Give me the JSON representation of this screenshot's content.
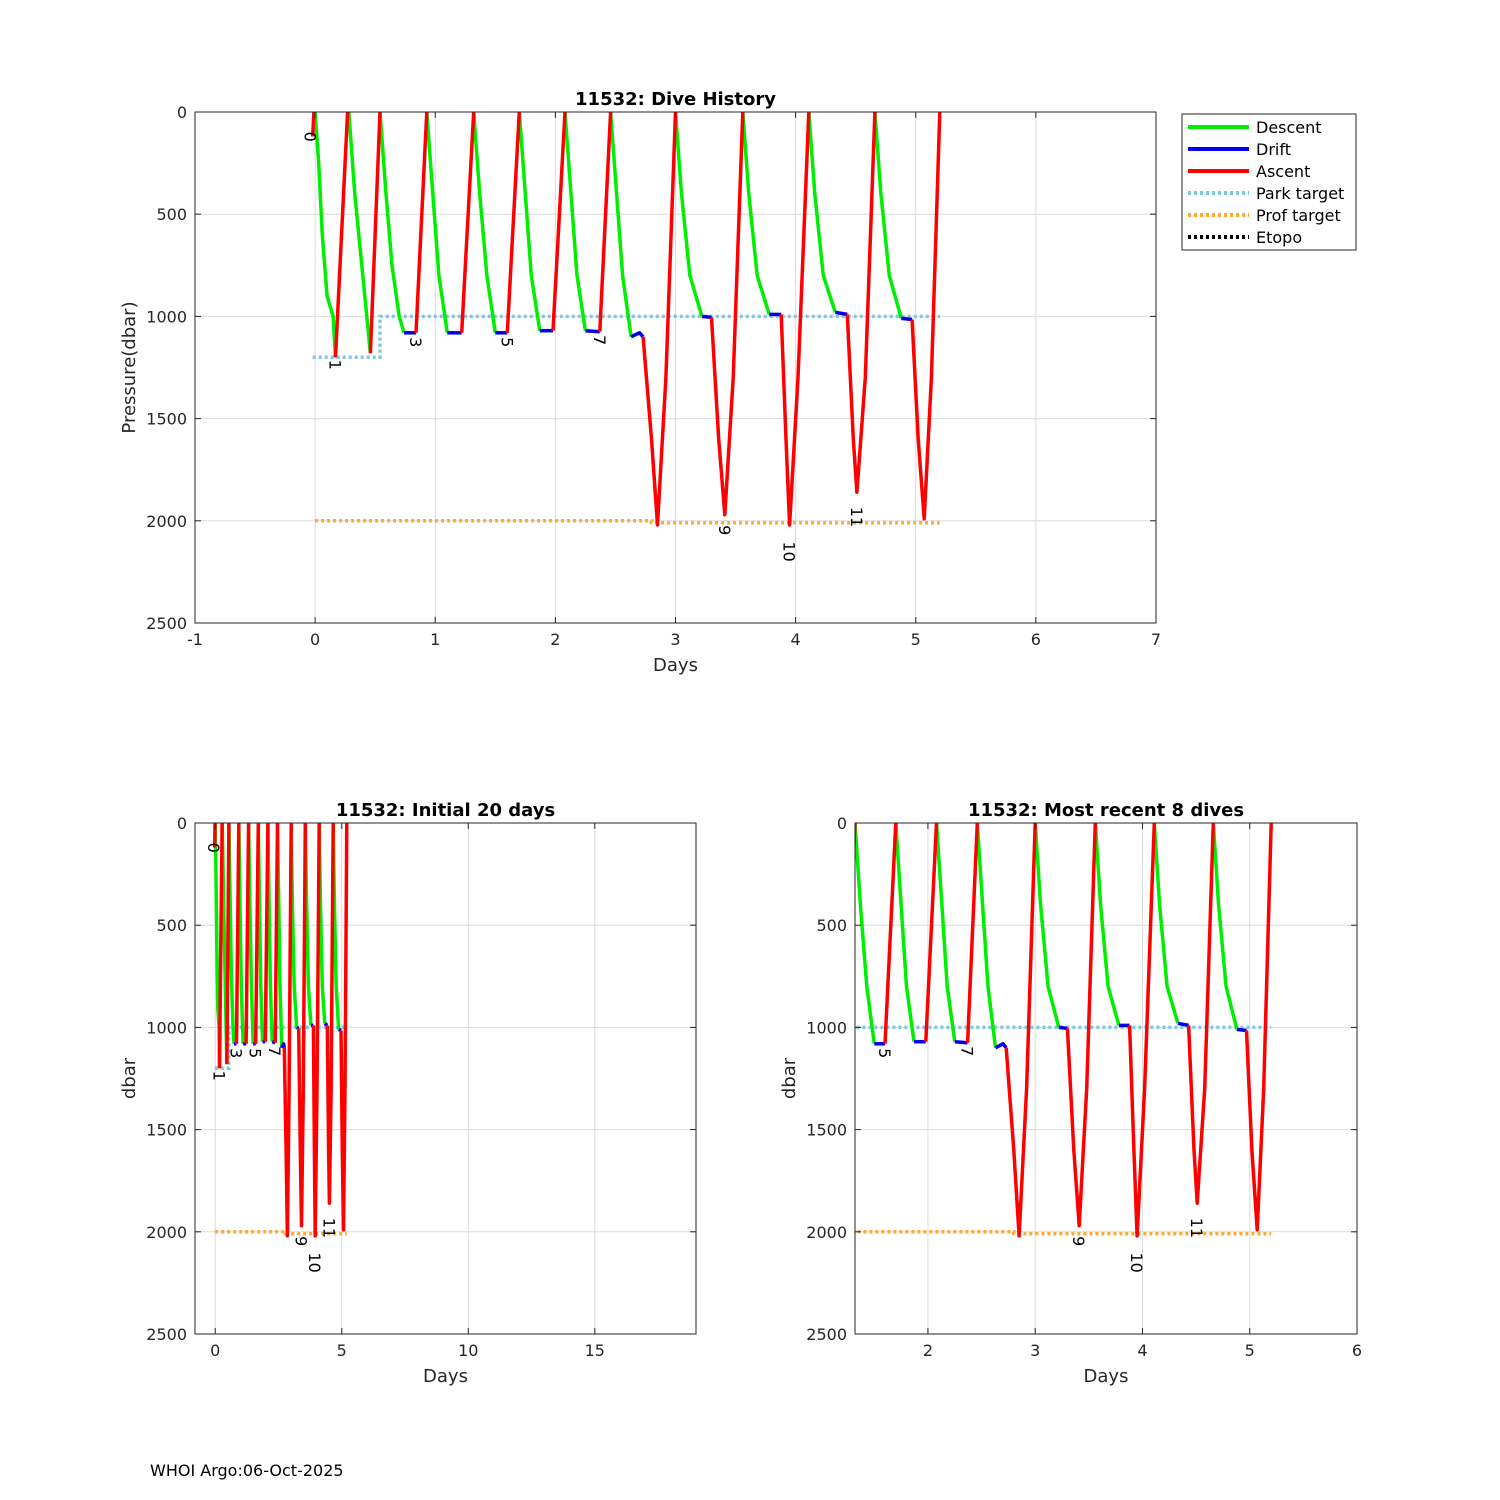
{
  "footer": "WHOI Argo:06-Oct-2025",
  "colors": {
    "descent": "#00ee00",
    "drift": "#0000ee",
    "ascent": "#ff0000",
    "park": "#7ec8e3",
    "prof": "#ffaa33",
    "etopo": "#000000",
    "grid": "#dcdcdc",
    "axis": "#262626"
  },
  "legend": [
    {
      "key": "descent",
      "label": "Descent",
      "style": "solid"
    },
    {
      "key": "drift",
      "label": "Drift",
      "style": "solid"
    },
    {
      "key": "ascent",
      "label": "Ascent",
      "style": "solid"
    },
    {
      "key": "park",
      "label": "Park target",
      "style": "dotted"
    },
    {
      "key": "prof",
      "label": "Prof target",
      "style": "dotted"
    },
    {
      "key": "etopo",
      "label": "Etopo",
      "style": "dotted"
    }
  ],
  "chart_data": {
    "type": "line",
    "series_data": {
      "descent": [
        [
          [
            0.0,
            0
          ],
          [
            0.03,
            250
          ],
          [
            0.06,
            600
          ],
          [
            0.1,
            900
          ],
          [
            0.15,
            1000
          ],
          [
            0.17,
            1200
          ]
        ],
        [
          [
            0.28,
            0
          ],
          [
            0.33,
            400
          ],
          [
            0.38,
            700
          ],
          [
            0.43,
            1000
          ],
          [
            0.46,
            1180
          ]
        ],
        [
          [
            0.54,
            0
          ],
          [
            0.59,
            400
          ],
          [
            0.64,
            750
          ],
          [
            0.7,
            1000
          ],
          [
            0.74,
            1080
          ]
        ],
        [
          [
            0.93,
            0
          ],
          [
            0.98,
            400
          ],
          [
            1.03,
            800
          ],
          [
            1.1,
            1080
          ]
        ],
        [
          [
            1.32,
            0
          ],
          [
            1.37,
            400
          ],
          [
            1.43,
            800
          ],
          [
            1.5,
            1080
          ]
        ],
        [
          [
            1.7,
            0
          ],
          [
            1.75,
            400
          ],
          [
            1.8,
            800
          ],
          [
            1.87,
            1070
          ]
        ],
        [
          [
            2.08,
            0
          ],
          [
            2.13,
            400
          ],
          [
            2.18,
            800
          ],
          [
            2.25,
            1070
          ]
        ],
        [
          [
            2.46,
            0
          ],
          [
            2.51,
            400
          ],
          [
            2.56,
            800
          ],
          [
            2.63,
            1100
          ]
        ],
        [
          [
            3.0,
            0
          ],
          [
            3.05,
            400
          ],
          [
            3.12,
            800
          ],
          [
            3.22,
            1000
          ]
        ],
        [
          [
            3.56,
            0
          ],
          [
            3.61,
            400
          ],
          [
            3.68,
            800
          ],
          [
            3.78,
            990
          ]
        ],
        [
          [
            4.11,
            0
          ],
          [
            4.16,
            400
          ],
          [
            4.23,
            800
          ],
          [
            4.33,
            980
          ]
        ],
        [
          [
            4.66,
            0
          ],
          [
            4.71,
            400
          ],
          [
            4.78,
            800
          ],
          [
            4.88,
            1010
          ]
        ]
      ],
      "drift": [
        [
          [
            0.74,
            1080
          ],
          [
            0.84,
            1080
          ]
        ],
        [
          [
            1.1,
            1080
          ],
          [
            1.22,
            1080
          ]
        ],
        [
          [
            1.5,
            1080
          ],
          [
            1.6,
            1080
          ]
        ],
        [
          [
            1.87,
            1070
          ],
          [
            1.98,
            1070
          ]
        ],
        [
          [
            2.25,
            1070
          ],
          [
            2.37,
            1075
          ]
        ],
        [
          [
            2.63,
            1100
          ],
          [
            2.7,
            1080
          ],
          [
            2.73,
            1100
          ]
        ],
        [
          [
            3.22,
            1000
          ],
          [
            3.3,
            1005
          ]
        ],
        [
          [
            3.78,
            990
          ],
          [
            3.88,
            990
          ]
        ],
        [
          [
            4.33,
            980
          ],
          [
            4.43,
            990
          ]
        ],
        [
          [
            4.88,
            1010
          ],
          [
            4.97,
            1015
          ]
        ]
      ],
      "ascent": [
        [
          [
            -0.02,
            120
          ],
          [
            -0.01,
            0
          ]
        ],
        [
          [
            0.17,
            1200
          ],
          [
            0.27,
            0
          ]
        ],
        [
          [
            0.46,
            1180
          ],
          [
            0.54,
            0
          ]
        ],
        [
          [
            0.84,
            1080
          ],
          [
            0.93,
            0
          ]
        ],
        [
          [
            1.22,
            1080
          ],
          [
            1.32,
            0
          ]
        ],
        [
          [
            1.6,
            1080
          ],
          [
            1.7,
            0
          ]
        ],
        [
          [
            1.98,
            1070
          ],
          [
            2.08,
            0
          ]
        ],
        [
          [
            2.37,
            1075
          ],
          [
            2.46,
            0
          ]
        ],
        [
          [
            2.73,
            1100
          ],
          [
            2.8,
            1600
          ],
          [
            2.85,
            2020
          ],
          [
            2.92,
            1300
          ],
          [
            3.0,
            0
          ]
        ],
        [
          [
            3.3,
            1005
          ],
          [
            3.36,
            1600
          ],
          [
            3.41,
            1970
          ],
          [
            3.48,
            1300
          ],
          [
            3.56,
            0
          ]
        ],
        [
          [
            3.88,
            990
          ],
          [
            3.92,
            1600
          ],
          [
            3.95,
            2020
          ],
          [
            4.02,
            1300
          ],
          [
            4.11,
            0
          ]
        ],
        [
          [
            4.43,
            990
          ],
          [
            4.48,
            1600
          ],
          [
            4.51,
            1860
          ],
          [
            4.58,
            1300
          ],
          [
            4.66,
            0
          ]
        ],
        [
          [
            4.97,
            1015
          ],
          [
            5.02,
            1600
          ],
          [
            5.07,
            1990
          ],
          [
            5.13,
            1300
          ],
          [
            5.2,
            0
          ]
        ]
      ],
      "park": [
        [
          -0.02,
          1200
        ],
        [
          0.54,
          1200
        ],
        [
          0.54,
          1000
        ],
        [
          5.2,
          1000
        ]
      ],
      "prof": [
        [
          0.0,
          2000
        ],
        [
          2.8,
          2000
        ],
        [
          2.8,
          2010
        ],
        [
          5.2,
          2010
        ]
      ]
    },
    "cycle_labels": [
      {
        "text": "0",
        "x": -0.04,
        "y": 155
      },
      {
        "text": "1",
        "x": 0.17,
        "y": 1270
      },
      {
        "text": "3",
        "x": 0.84,
        "y": 1160
      },
      {
        "text": "5",
        "x": 1.6,
        "y": 1160
      },
      {
        "text": "7",
        "x": 2.37,
        "y": 1150
      },
      {
        "text": "9",
        "x": 3.41,
        "y": 2080
      },
      {
        "text": "10",
        "x": 3.95,
        "y": 2160
      },
      {
        "text": "11",
        "x": 4.51,
        "y": 1990
      }
    ],
    "charts": [
      {
        "id": "top",
        "title": "11532: Dive History",
        "xlabel": "Days",
        "ylabel": "Pressure(dbar)",
        "xlim": [
          -1,
          7
        ],
        "ylim": [
          0,
          2500
        ],
        "xticks": [
          -1,
          0,
          1,
          2,
          3,
          4,
          5,
          6,
          7
        ],
        "yticks": [
          0,
          500,
          1000,
          1500,
          2000,
          2500
        ],
        "grid": true,
        "legend": "outside-top-right",
        "labels": [
          "0",
          "1",
          "3",
          "5",
          "7",
          "9",
          "10",
          "11"
        ]
      },
      {
        "id": "bottom-left",
        "title": "11532: Initial 20 days",
        "xlabel": "Days",
        "ylabel": "dbar",
        "xlim": [
          -0.8,
          19
        ],
        "ylim": [
          0,
          2500
        ],
        "xticks": [
          0,
          5,
          10,
          15
        ],
        "yticks": [
          0,
          500,
          1000,
          1500,
          2000,
          2500
        ],
        "grid": true,
        "labels": [
          "0",
          "1",
          "3",
          "5",
          "7",
          "9",
          "10",
          "11"
        ]
      },
      {
        "id": "bottom-right",
        "title": "11532: Most recent 8 dives",
        "xlabel": "Days",
        "ylabel": "dbar",
        "xlim": [
          1.32,
          6
        ],
        "ylim": [
          0,
          2500
        ],
        "xticks": [
          2,
          3,
          4,
          5,
          6
        ],
        "yticks": [
          0,
          500,
          1000,
          1500,
          2000,
          2500
        ],
        "grid": true,
        "labels": [
          "5",
          "7",
          "9",
          "10",
          "11"
        ]
      }
    ]
  }
}
